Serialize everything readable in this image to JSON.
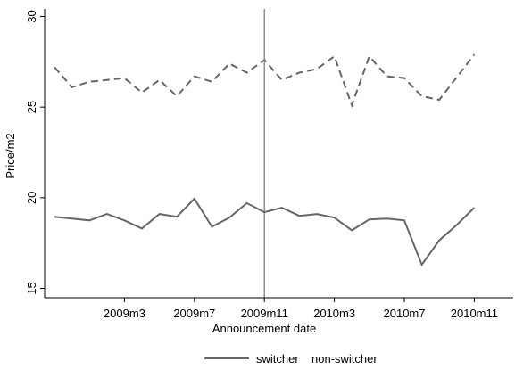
{
  "chart_data": {
    "type": "line",
    "xlabel": "Announcement date",
    "ylabel": "Price/m2",
    "ylim": [
      15,
      30
    ],
    "xlim_months_labels": [
      "2008m11",
      "2010m12"
    ],
    "yticks": [
      15,
      20,
      25,
      30
    ],
    "xticks": [
      "2009m3",
      "2009m7",
      "2009m11",
      "2010m3",
      "2010m7",
      "2010m11"
    ],
    "vline_at": "2009m11",
    "grid": false,
    "legend": "bottom",
    "x": [
      "2008m11",
      "2008m12",
      "2009m1",
      "2009m2",
      "2009m3",
      "2009m4",
      "2009m5",
      "2009m6",
      "2009m7",
      "2009m8",
      "2009m9",
      "2009m10",
      "2009m11",
      "2009m12",
      "2010m1",
      "2010m2",
      "2010m3",
      "2010m4",
      "2010m5",
      "2010m6",
      "2010m7",
      "2010m8",
      "2010m9",
      "2010m10",
      "2010m11"
    ],
    "series": [
      {
        "name": "switcher",
        "color": "#666666",
        "dash": "solid",
        "values": [
          18.95,
          18.85,
          18.75,
          19.1,
          18.75,
          18.3,
          19.1,
          18.95,
          19.95,
          18.4,
          18.9,
          19.7,
          19.2,
          19.45,
          19.0,
          19.1,
          18.9,
          18.2,
          18.8,
          18.85,
          18.75,
          16.3,
          17.65,
          18.5,
          19.45
        ]
      },
      {
        "name": "non-switcher",
        "color": "#666666",
        "dash": "dashed",
        "values": [
          27.2,
          26.1,
          26.4,
          26.5,
          26.6,
          25.8,
          26.5,
          25.6,
          26.7,
          26.4,
          27.4,
          26.9,
          27.6,
          26.5,
          26.9,
          27.1,
          27.8,
          25.1,
          27.8,
          26.7,
          26.6,
          25.6,
          25.4,
          26.65,
          27.9
        ]
      }
    ]
  }
}
